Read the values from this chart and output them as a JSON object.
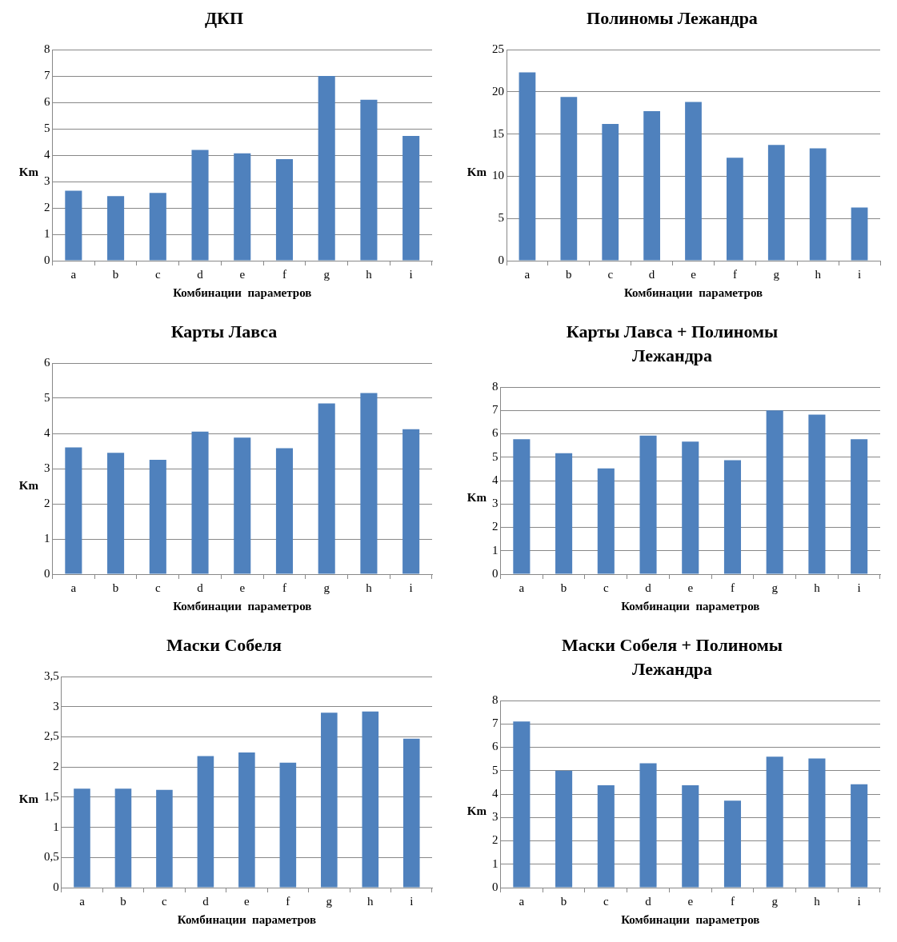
{
  "chart_data": [
    {
      "type": "bar",
      "title": "ДКП",
      "xlabel": "Комбинации  параметров",
      "ylabel": "Km",
      "categories": [
        "a",
        "b",
        "c",
        "d",
        "e",
        "f",
        "g",
        "h",
        "i"
      ],
      "values": [
        2.65,
        2.45,
        2.57,
        4.2,
        4.07,
        3.85,
        7.0,
        6.1,
        4.73
      ],
      "color": "#4f81bd",
      "ylim": [
        0,
        8
      ],
      "yticks": [
        0,
        1,
        2,
        3,
        4,
        5,
        6,
        7,
        8
      ],
      "grid": "y"
    },
    {
      "type": "bar",
      "title": "Полиномы Лежандра",
      "xlabel": "Комбинации  параметров",
      "ylabel": "Km",
      "categories": [
        "a",
        "b",
        "c",
        "d",
        "e",
        "f",
        "g",
        "h",
        "i"
      ],
      "values": [
        22.3,
        19.4,
        16.2,
        17.7,
        18.8,
        12.2,
        13.7,
        13.3,
        6.3
      ],
      "color": "#4f81bd",
      "ylim": [
        0,
        25
      ],
      "yticks": [
        0,
        5,
        10,
        15,
        20,
        25
      ],
      "grid": "y"
    },
    {
      "type": "bar",
      "title": "Карты Лавса",
      "xlabel": "Комбинации  параметров",
      "ylabel": "Km",
      "categories": [
        "a",
        "b",
        "c",
        "d",
        "e",
        "f",
        "g",
        "h",
        "i"
      ],
      "values": [
        3.6,
        3.45,
        3.25,
        4.05,
        3.88,
        3.58,
        4.85,
        5.15,
        4.12
      ],
      "color": "#4f81bd",
      "ylim": [
        0,
        6
      ],
      "yticks": [
        0,
        1,
        2,
        3,
        4,
        5,
        6
      ],
      "grid": "y"
    },
    {
      "type": "bar",
      "title": "Карты Лавса + Полиномы Лежандра",
      "xlabel": "Комбинации  параметров",
      "ylabel": "Km",
      "categories": [
        "a",
        "b",
        "c",
        "d",
        "e",
        "f",
        "g",
        "h",
        "i"
      ],
      "values": [
        5.77,
        5.17,
        4.52,
        5.92,
        5.67,
        4.87,
        7.0,
        6.82,
        5.77
      ],
      "color": "#4f81bd",
      "ylim": [
        0,
        8
      ],
      "yticks": [
        0,
        1,
        2,
        3,
        4,
        5,
        6,
        7,
        8
      ],
      "grid": "y"
    },
    {
      "type": "bar",
      "title": "Маски Собеля",
      "xlabel": "Комбинации  параметров",
      "ylabel": "Km",
      "categories": [
        "a",
        "b",
        "c",
        "d",
        "e",
        "f",
        "g",
        "h",
        "i"
      ],
      "values": [
        1.64,
        1.64,
        1.62,
        2.18,
        2.24,
        2.07,
        2.9,
        2.92,
        2.47
      ],
      "color": "#4f81bd",
      "ylim": [
        0,
        3.5
      ],
      "yticks": [
        0,
        {
          "value": 0.5,
          "label": "0,5"
        },
        1,
        {
          "value": 1.5,
          "label": "1,5"
        },
        2,
        {
          "value": 2.5,
          "label": "2,5"
        },
        3,
        {
          "value": 3.5,
          "label": "3,5"
        }
      ],
      "grid": "y"
    },
    {
      "type": "bar",
      "title": "Маски Собеля + Полиномы Лежандра",
      "xlabel": "Комбинации  параметров",
      "ylabel": "Km",
      "categories": [
        "a",
        "b",
        "c",
        "d",
        "e",
        "f",
        "g",
        "h",
        "i"
      ],
      "values": [
        7.1,
        5.0,
        4.38,
        5.32,
        4.38,
        3.72,
        5.6,
        5.52,
        4.42
      ],
      "color": "#4f81bd",
      "ylim": [
        0,
        8
      ],
      "yticks": [
        0,
        1,
        2,
        3,
        4,
        5,
        6,
        7,
        8
      ],
      "grid": "y"
    }
  ]
}
